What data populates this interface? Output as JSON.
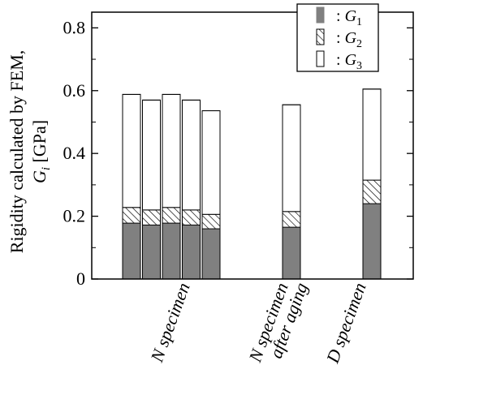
{
  "chart_data": {
    "type": "bar",
    "stacked": true,
    "ylabel_line1": "Rigidity calculated by FEM,",
    "ylabel_line2": "G",
    "ylabel_line2_sub": "i",
    "ylabel_line2_unit": " [GPa]",
    "ylim": [
      0,
      0.85
    ],
    "yticks": [
      {
        "value": 0,
        "label": "0"
      },
      {
        "value": 0.2,
        "label": "0.2"
      },
      {
        "value": 0.4,
        "label": "0.4"
      },
      {
        "value": 0.6,
        "label": "0.6"
      },
      {
        "value": 0.8,
        "label": "0.8"
      }
    ],
    "grid": false,
    "legend_position": "top-right",
    "legend": [
      {
        "prefix": ": ",
        "symbol": "G",
        "sub": "1",
        "fill": "solid"
      },
      {
        "prefix": ": ",
        "symbol": "G",
        "sub": "2",
        "fill": "hatch"
      },
      {
        "prefix": ": ",
        "symbol": "G",
        "sub": "3",
        "fill": "open"
      }
    ],
    "groups": [
      {
        "label_lines": [
          "N specimen"
        ],
        "bars": [
          {
            "G1": 0.178,
            "G2": 0.05,
            "G3": 0.36
          },
          {
            "G1": 0.172,
            "G2": 0.048,
            "G3": 0.35
          },
          {
            "G1": 0.178,
            "G2": 0.05,
            "G3": 0.36
          },
          {
            "G1": 0.172,
            "G2": 0.048,
            "G3": 0.35
          },
          {
            "G1": 0.16,
            "G2": 0.046,
            "G3": 0.33
          }
        ]
      },
      {
        "label_lines": [
          "N specimen",
          "after aging"
        ],
        "bars": [
          {
            "G1": 0.165,
            "G2": 0.05,
            "G3": 0.34
          }
        ]
      },
      {
        "label_lines": [
          "D specimen"
        ],
        "bars": [
          {
            "G1": 0.24,
            "G2": 0.075,
            "G3": 0.29
          }
        ]
      }
    ],
    "colors": {
      "G1": "#808080",
      "G2": "#ffffff",
      "G3": "#ffffff",
      "stroke": "#000000"
    }
  }
}
